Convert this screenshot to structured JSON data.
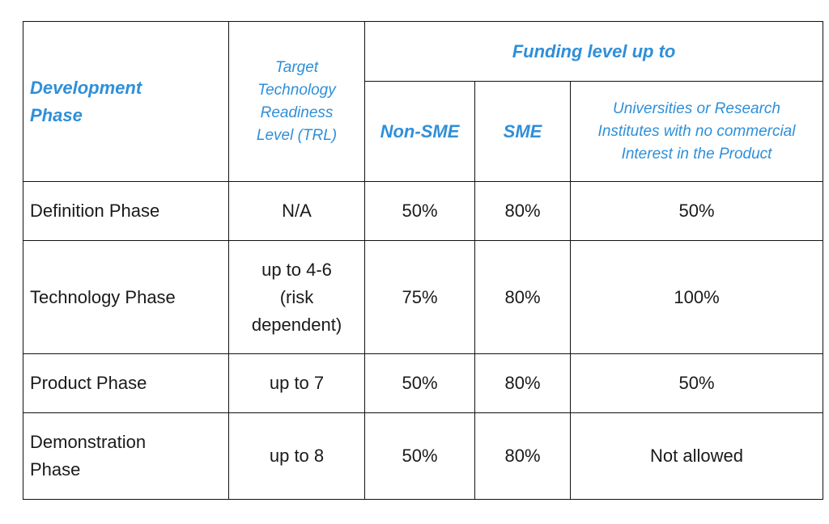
{
  "table": {
    "headers": {
      "development_phase": "Development Phase",
      "trl": "Target Technology Readiness Level (TRL)",
      "funding_level": "Funding level up to",
      "non_sme": "Non-SME",
      "sme": "SME",
      "universities": "Universities or Research Institutes with no commercial Interest in the Product"
    },
    "rows": [
      {
        "phase": "Definition Phase",
        "trl": "N/A",
        "non_sme": "50%",
        "sme": "80%",
        "universities": "50%"
      },
      {
        "phase": "Technology Phase",
        "trl": "up to 4-6 (risk dependent)",
        "non_sme": "75%",
        "sme": "80%",
        "universities": "100%"
      },
      {
        "phase": "Product Phase",
        "trl": "up to 7",
        "non_sme": "50%",
        "sme": "80%",
        "universities": "50%"
      },
      {
        "phase": "Demonstration Phase",
        "trl": "up to 8",
        "non_sme": "50%",
        "sme": "80%",
        "universities": "Not allowed"
      }
    ]
  },
  "colors": {
    "header_text": "#2f8fd8",
    "border": "#111111",
    "body_text": "#1a1a1a"
  }
}
